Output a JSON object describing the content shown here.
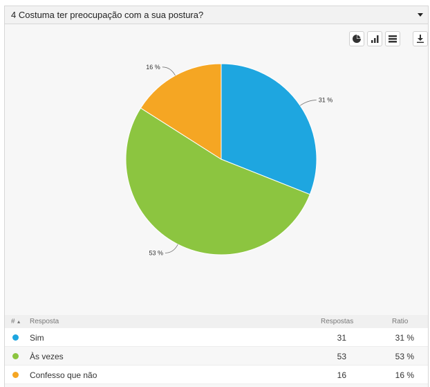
{
  "header": {
    "title": "4 Costuma ter preocupação com a sua postura?"
  },
  "toolbar": {
    "buttons": [
      "pie-chart-icon",
      "bar-chart-icon",
      "table-icon",
      "download-icon"
    ]
  },
  "colors": {
    "sim": "#1ea6e0",
    "as_vezes": "#8cc540",
    "confesso": "#f5a623"
  },
  "chart_data": {
    "type": "pie",
    "categories": [
      "Sim",
      "Às vezes",
      "Confesso que não"
    ],
    "values": [
      31,
      53,
      16
    ],
    "labels": [
      "31 %",
      "53 %",
      "16 %"
    ],
    "colors": [
      "#1ea6e0",
      "#8cc540",
      "#f5a623"
    ]
  },
  "table": {
    "headers": {
      "num": "#",
      "resposta": "Resposta",
      "respostas": "Respostas",
      "ratio": "Ratio"
    },
    "rows": [
      {
        "label": "Sim",
        "count": "31",
        "ratio": "31 %"
      },
      {
        "label": "Às vezes",
        "count": "53",
        "ratio": "53 %"
      },
      {
        "label": "Confesso que não",
        "count": "16",
        "ratio": "16 %"
      }
    ]
  }
}
